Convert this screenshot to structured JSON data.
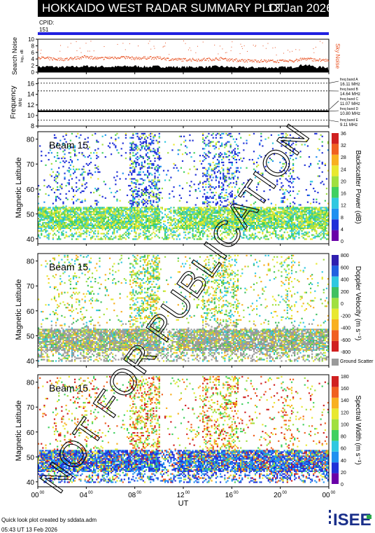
{
  "header": {
    "title": "HOKKAIDO WEST RADAR SUMMARY PLOT",
    "date": "13 Jan 2026",
    "cpid_label": "CPID:",
    "cpid_value": "151"
  },
  "colors": {
    "cpid_bar": "#2020e0",
    "noise_line": "#e85020",
    "sky_noise": "#e85020",
    "search_noise_fill": "#000000",
    "ground_scatter": "#9a9a9a",
    "watermark": "#000000"
  },
  "chart_data": [
    {
      "type": "area",
      "panel": "noise",
      "ylabel": "Search Noise",
      "ylabel_sub": "log₁₀ dB",
      "yticks": [
        "0",
        "2",
        "4",
        "6",
        "8",
        "10"
      ],
      "ylim": [
        0,
        10
      ],
      "xlim": [
        0,
        24
      ],
      "right_label": "Sky Noise",
      "series": [
        {
          "name": "Sky Noise",
          "x": [
            0,
            1,
            2,
            3,
            4,
            5,
            6,
            7,
            8,
            9,
            10,
            11,
            12,
            13,
            14,
            15,
            16,
            17,
            18,
            19,
            20,
            21,
            22,
            23,
            24
          ],
          "values": [
            4.5,
            4.2,
            4.0,
            4.3,
            4.8,
            4.2,
            4.5,
            4.7,
            4.3,
            4.5,
            4.4,
            4.0,
            3.9,
            3.9,
            4.0,
            4.2,
            3.8,
            3.6,
            3.5,
            3.5,
            3.4,
            3.5,
            4.2,
            3.8,
            3.7
          ]
        },
        {
          "name": "Search Noise",
          "x": [
            0,
            1,
            2,
            3,
            4,
            5,
            6,
            7,
            8,
            9,
            10,
            11,
            12,
            13,
            14,
            15,
            16,
            17,
            18,
            19,
            20,
            21,
            22,
            23,
            24
          ],
          "values": [
            1.6,
            1.7,
            1.5,
            1.6,
            1.8,
            1.7,
            1.6,
            1.7,
            1.8,
            1.6,
            1.7,
            1.6,
            1.5,
            1.6,
            1.6,
            1.7,
            1.5,
            1.4,
            1.4,
            1.4,
            1.4,
            1.5,
            2.3,
            1.5,
            1.5
          ]
        }
      ]
    },
    {
      "type": "line",
      "panel": "frequency",
      "ylabel": "Frequency",
      "ylabel_sub": "MHz",
      "yticks": [
        "8",
        "10",
        "12",
        "14",
        "16"
      ],
      "ylim": [
        8,
        17
      ],
      "xlim": [
        0,
        24
      ],
      "bands": [
        {
          "label": "freq band A",
          "value": "16.11 MHz",
          "freq": 16.11,
          "style": "dashed"
        },
        {
          "label": "freq band B",
          "value": "14.64 MHz",
          "freq": 14.64,
          "style": "dashed"
        },
        {
          "label": "freq band C",
          "value": "11.07 MHz",
          "freq": 11.07,
          "style": "dashed"
        },
        {
          "label": "freq band D",
          "value": "10.80 MHz",
          "freq": 10.8,
          "style": "solid"
        },
        {
          "label": "freq band E",
          "value": "9.11 MHz",
          "freq": 9.11,
          "style": "dashed"
        }
      ]
    },
    {
      "type": "heatmap",
      "panel": "power",
      "beam_label": "Beam 15",
      "ylabel": "Magnetic Latitude",
      "yticks": [
        "40",
        "50",
        "60",
        "70",
        "80"
      ],
      "ylim": [
        38,
        83
      ],
      "xlim": [
        0,
        24
      ],
      "colorbar_label": "Backscatter Power (dB)",
      "colorbar_ticks": [
        "0",
        "4",
        "8",
        "12",
        "16",
        "20",
        "24",
        "28",
        "32",
        "36"
      ],
      "colorbar_colors": [
        "#6a00a8",
        "#2030d8",
        "#2090f0",
        "#30c8e0",
        "#40d060",
        "#a0e040",
        "#e8e830",
        "#f8b020",
        "#f06020",
        "#d02020"
      ]
    },
    {
      "type": "heatmap",
      "panel": "velocity",
      "beam_label": "Beam 15",
      "ylabel": "Magnetic Latitude",
      "yticks": [
        "40",
        "50",
        "60",
        "70",
        "80"
      ],
      "ylim": [
        38,
        83
      ],
      "xlim": [
        0,
        24
      ],
      "colorbar_label": "Doppler Velocity (m s⁻¹)",
      "colorbar_ticks": [
        "-800",
        "-600",
        "-400",
        "-200",
        "0",
        "200",
        "400",
        "600",
        "800"
      ],
      "colorbar_colors": [
        "#d02020",
        "#f06020",
        "#f8b020",
        "#e8e830",
        "#a0e040",
        "#40c060",
        "#30c8e0",
        "#2060e0",
        "#3020b0"
      ],
      "ground_scatter_label": "Ground Scatter"
    },
    {
      "type": "heatmap",
      "panel": "width",
      "beam_label": "Beam 15",
      "ylabel": "Magnetic Latitude",
      "yticks": [
        "40",
        "50",
        "60",
        "70",
        "80"
      ],
      "ylim": [
        38,
        83
      ],
      "xlim": [
        0,
        24
      ],
      "colorbar_label": "Spectral Width (m s⁻¹)",
      "colorbar_ticks": [
        "0",
        "20",
        "40",
        "60",
        "80",
        "100",
        "120",
        "140",
        "160",
        "180"
      ],
      "colorbar_colors": [
        "#6a00a8",
        "#2030d8",
        "#2090f0",
        "#30c8e0",
        "#40d060",
        "#a0e040",
        "#e8e830",
        "#f8b020",
        "#f06020",
        "#d02020"
      ]
    }
  ],
  "xaxis": {
    "ticks": [
      "00",
      "04",
      "08",
      "12",
      "16",
      "20",
      "00"
    ],
    "tick_sup": "00",
    "label": "UT"
  },
  "watermark": "NOT FOR PUBLICATION",
  "footer": {
    "line1": "Quick look plot created by sddata.adm",
    "line2": "05:43  UT  13 Feb 2026",
    "logo": "ISEE"
  }
}
